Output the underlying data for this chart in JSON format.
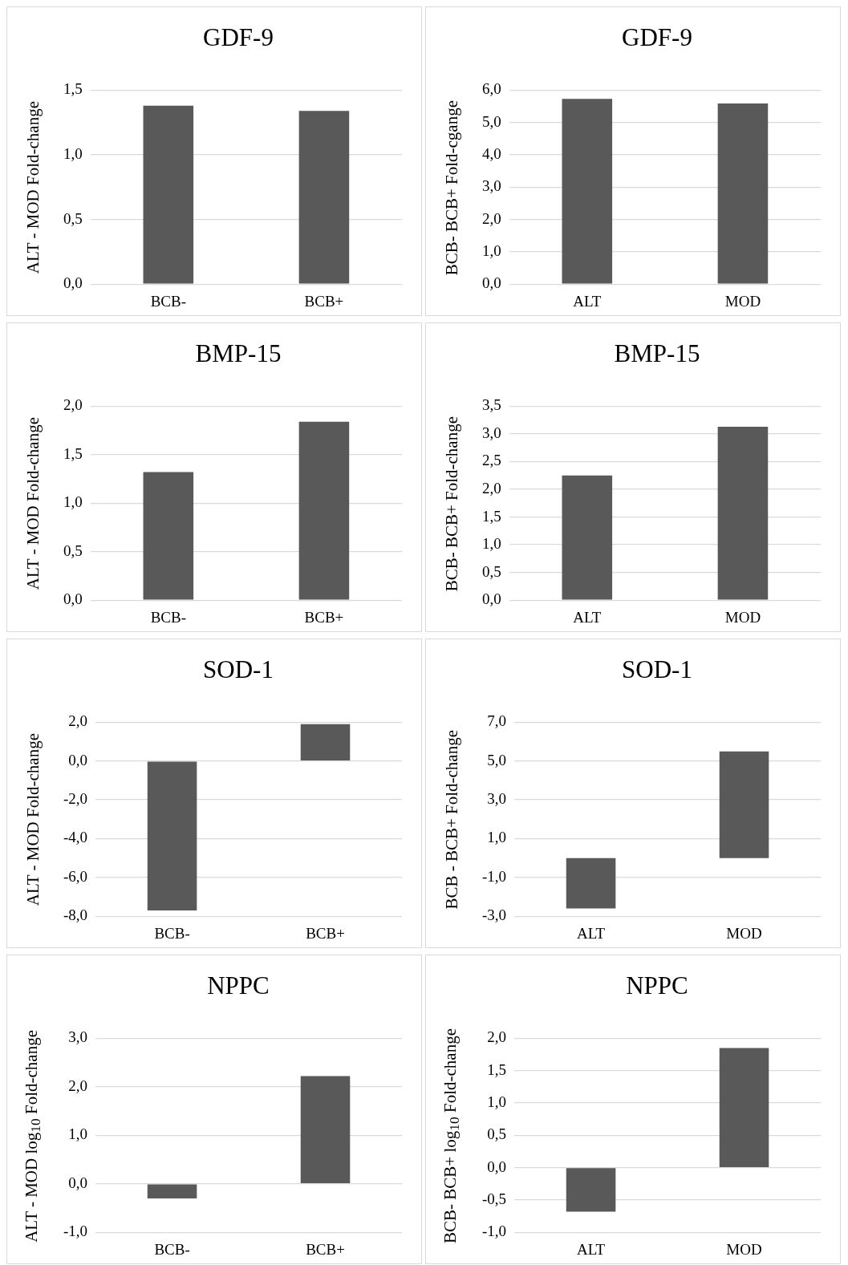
{
  "chart_data": [
    {
      "type": "bar",
      "title": "GDF-9",
      "ylabel": "ALT - MOD Fold-change",
      "categories": [
        "BCB-",
        "BCB+"
      ],
      "values": [
        1.38,
        1.34
      ],
      "color": "#595959",
      "ylim": [
        0,
        1.5
      ],
      "yticks": [
        {
          "value": 0,
          "label": "0,0"
        },
        {
          "value": 0.5,
          "label": "0,5"
        },
        {
          "value": 1,
          "label": "1,0"
        },
        {
          "value": 1.5,
          "label": "1,5"
        }
      ],
      "grid": "y"
    },
    {
      "type": "bar",
      "title": "GDF-9",
      "ylabel": "BCB- BCB+ Fold-cgange",
      "categories": [
        "ALT",
        "MOD"
      ],
      "values": [
        5.73,
        5.59
      ],
      "color": "#595959",
      "ylim": [
        0,
        6
      ],
      "yticks": [
        {
          "value": 0,
          "label": "0,0"
        },
        {
          "value": 1,
          "label": "1,0"
        },
        {
          "value": 2,
          "label": "2,0"
        },
        {
          "value": 3,
          "label": "3,0"
        },
        {
          "value": 4,
          "label": "4,0"
        },
        {
          "value": 5,
          "label": "5,0"
        },
        {
          "value": 6,
          "label": "6,0"
        }
      ],
      "grid": "y"
    },
    {
      "type": "bar",
      "title": "BMP-15",
      "ylabel": "ALT - MOD Fold-change",
      "categories": [
        "BCB-",
        "BCB+"
      ],
      "values": [
        1.32,
        1.84
      ],
      "color": "#595959",
      "ylim": [
        0,
        2
      ],
      "yticks": [
        {
          "value": 0,
          "label": "0,0"
        },
        {
          "value": 0.5,
          "label": "0,5"
        },
        {
          "value": 1,
          "label": "1,0"
        },
        {
          "value": 1.5,
          "label": "1,5"
        },
        {
          "value": 2,
          "label": "2,0"
        }
      ],
      "grid": "y"
    },
    {
      "type": "bar",
      "title": "BMP-15",
      "ylabel": "BCB- BCB+ Fold-change",
      "categories": [
        "ALT",
        "MOD"
      ],
      "values": [
        2.25,
        3.13
      ],
      "color": "#595959",
      "ylim": [
        0,
        3.5
      ],
      "yticks": [
        {
          "value": 0,
          "label": "0,0"
        },
        {
          "value": 0.5,
          "label": "0,5"
        },
        {
          "value": 1,
          "label": "1,0"
        },
        {
          "value": 1.5,
          "label": "1,5"
        },
        {
          "value": 2,
          "label": "2,0"
        },
        {
          "value": 2.5,
          "label": "2,5"
        },
        {
          "value": 3,
          "label": "3,0"
        },
        {
          "value": 3.5,
          "label": "3,5"
        }
      ],
      "grid": "y"
    },
    {
      "type": "bar",
      "title": "SOD-1",
      "ylabel": "ALT - MOD Fold-change",
      "categories": [
        "BCB-",
        "BCB+"
      ],
      "values": [
        -7.7,
        1.9
      ],
      "color": "#595959",
      "ylim": [
        -8,
        2
      ],
      "yticks": [
        {
          "value": -8,
          "label": "-8,0"
        },
        {
          "value": -6,
          "label": "-6,0"
        },
        {
          "value": -4,
          "label": "-4,0"
        },
        {
          "value": -2,
          "label": "-2,0"
        },
        {
          "value": 0,
          "label": "0,0"
        },
        {
          "value": 2,
          "label": "2,0"
        }
      ],
      "grid": "y"
    },
    {
      "type": "bar",
      "title": "SOD-1",
      "ylabel": "BCB - BCB+ Fold-change",
      "categories": [
        "ALT",
        "MOD"
      ],
      "values": [
        -2.6,
        5.5
      ],
      "color": "#595959",
      "ylim": [
        -3,
        7
      ],
      "yticks": [
        {
          "value": -3,
          "label": "-3,0"
        },
        {
          "value": -1,
          "label": "-1,0"
        },
        {
          "value": 1,
          "label": "1,0"
        },
        {
          "value": 3,
          "label": "3,0"
        },
        {
          "value": 5,
          "label": "5,0"
        },
        {
          "value": 7,
          "label": "7,0"
        }
      ],
      "grid": "y"
    },
    {
      "type": "bar",
      "title": "NPPC",
      "ylabel": "ALT - MOD log$_{10}$ Fold-change",
      "categories": [
        "BCB-",
        "BCB+"
      ],
      "values": [
        -0.3,
        2.22
      ],
      "color": "#595959",
      "ylim": [
        -1,
        3
      ],
      "yticks": [
        {
          "value": -1,
          "label": "-1,0"
        },
        {
          "value": 0,
          "label": "0,0"
        },
        {
          "value": 1,
          "label": "1,0"
        },
        {
          "value": 2,
          "label": "2,0"
        },
        {
          "value": 3,
          "label": "3,0"
        }
      ],
      "grid": "y"
    },
    {
      "type": "bar",
      "title": "NPPC",
      "ylabel": "BCB- BCB+ log$_{10}$ Fold-change",
      "categories": [
        "ALT",
        "MOD"
      ],
      "values": [
        -0.68,
        1.85
      ],
      "color": "#595959",
      "ylim": [
        -1,
        2
      ],
      "yticks": [
        {
          "value": -1,
          "label": "-1,0"
        },
        {
          "value": -0.5,
          "label": "-0,5"
        },
        {
          "value": 0,
          "label": "0,0"
        },
        {
          "value": 0.5,
          "label": "0,5"
        },
        {
          "value": 1,
          "label": "1,0"
        },
        {
          "value": 1.5,
          "label": "1,5"
        },
        {
          "value": 2,
          "label": "2,0"
        }
      ],
      "grid": "y"
    }
  ]
}
